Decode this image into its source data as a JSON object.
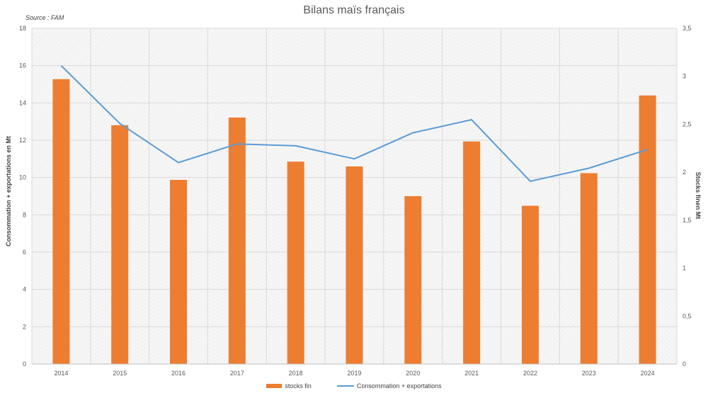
{
  "chart_data": {
    "type": "bar",
    "title": "Bilans maïs français",
    "source": "Source : FAM",
    "categories": [
      "2014",
      "2015",
      "2016",
      "2017",
      "2018",
      "2019",
      "2020",
      "2021",
      "2022",
      "2023",
      "2024"
    ],
    "series": [
      {
        "name": "stocks fin",
        "type": "bar",
        "axis": "right",
        "values": [
          2.97,
          2.49,
          1.92,
          2.57,
          2.11,
          2.06,
          1.75,
          2.32,
          1.65,
          1.99,
          2.8
        ],
        "color": "#ED7D31"
      },
      {
        "name": "Consommation + exportations",
        "type": "line",
        "axis": "left",
        "values": [
          16.0,
          12.9,
          10.8,
          11.8,
          11.7,
          11.0,
          12.4,
          13.1,
          9.8,
          10.5,
          11.5
        ],
        "color": "#5B9BD5"
      }
    ],
    "ylabel_left": "Consommation + exportations en Mt",
    "ylabel_right": "Stocks finen Mt",
    "ylim_left": [
      0,
      18
    ],
    "yticks_left": [
      "0",
      "2",
      "4",
      "6",
      "8",
      "10",
      "12",
      "14",
      "16",
      "18"
    ],
    "ylim_right": [
      0,
      3.5
    ],
    "yticks_right": [
      "0",
      "0,5",
      "1",
      "1,5",
      "2",
      "2,5",
      "3",
      "3,5"
    ],
    "grid": true,
    "legend_position": "bottom"
  }
}
